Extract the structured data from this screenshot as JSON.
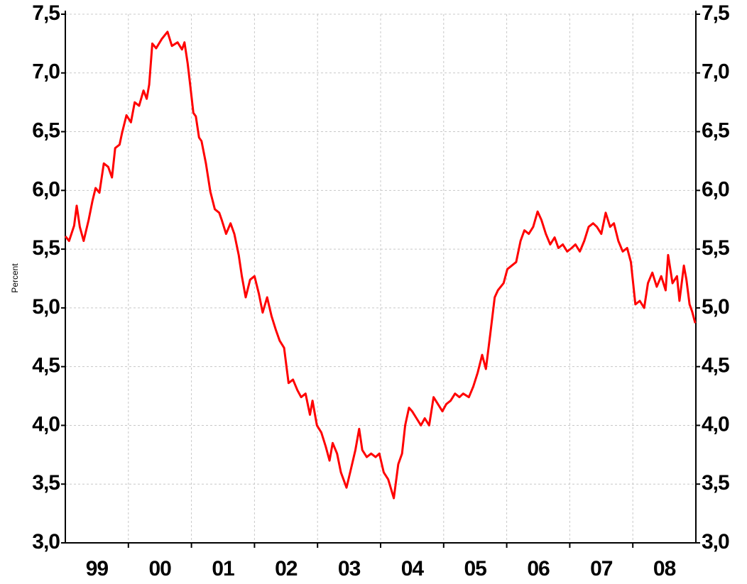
{
  "chart_data": {
    "type": "line",
    "y_label": "Percent",
    "x": [
      1999.0,
      1999.06,
      1999.14,
      1999.18,
      1999.23,
      1999.29,
      1999.37,
      1999.43,
      1999.48,
      1999.54,
      1999.61,
      1999.68,
      1999.74,
      1999.79,
      1999.86,
      1999.9,
      1999.97,
      2000.04,
      2000.1,
      2000.17,
      2000.24,
      2000.29,
      2000.33,
      2000.38,
      2000.44,
      2000.53,
      2000.62,
      2000.69,
      2000.78,
      2000.85,
      2000.89,
      2000.94,
      2000.98,
      2001.03,
      2001.07,
      2001.12,
      2001.16,
      2001.23,
      2001.3,
      2001.37,
      2001.44,
      2001.48,
      2001.55,
      2001.62,
      2001.68,
      2001.75,
      2001.8,
      2001.86,
      2001.93,
      2002.0,
      2002.07,
      2002.13,
      2002.2,
      2002.27,
      2002.34,
      2002.4,
      2002.47,
      2002.54,
      2002.61,
      2002.68,
      2002.74,
      2002.81,
      2002.88,
      2002.92,
      2002.99,
      2003.06,
      2003.13,
      2003.19,
      2003.24,
      2003.31,
      2003.37,
      2003.46,
      2003.53,
      2003.6,
      2003.66,
      2003.71,
      2003.78,
      2003.85,
      2003.92,
      2003.98,
      2004.05,
      2004.12,
      2004.21,
      2004.28,
      2004.34,
      2004.39,
      2004.45,
      2004.5,
      2004.57,
      2004.64,
      2004.7,
      2004.77,
      2004.84,
      2004.91,
      2004.98,
      2005.04,
      2005.11,
      2005.18,
      2005.25,
      2005.31,
      2005.4,
      2005.47,
      2005.54,
      2005.61,
      2005.67,
      2005.74,
      2005.81,
      2005.86,
      2005.95,
      2006.01,
      2006.08,
      2006.15,
      2006.22,
      2006.28,
      2006.35,
      2006.42,
      2006.49,
      2006.55,
      2006.62,
      2006.69,
      2006.76,
      2006.82,
      2006.89,
      2006.96,
      2007.03,
      2007.09,
      2007.16,
      2007.23,
      2007.3,
      2007.37,
      2007.43,
      2007.5,
      2007.57,
      2007.64,
      2007.7,
      2007.77,
      2007.84,
      2007.91,
      2007.97,
      2008.04,
      2008.11,
      2008.18,
      2008.24,
      2008.31,
      2008.38,
      2008.45,
      2008.52,
      2008.56,
      2008.63,
      2008.7,
      2008.74,
      2008.81,
      2008.85,
      2008.9,
      2008.94,
      2008.99
    ],
    "series": [
      {
        "color": "#ff0000",
        "values": [
          5.61,
          5.57,
          5.7,
          5.87,
          5.69,
          5.57,
          5.75,
          5.91,
          6.02,
          5.98,
          6.23,
          6.2,
          6.11,
          6.36,
          6.39,
          6.49,
          6.64,
          6.58,
          6.75,
          6.72,
          6.85,
          6.78,
          6.9,
          7.25,
          7.21,
          7.29,
          7.35,
          7.23,
          7.26,
          7.2,
          7.26,
          7.08,
          6.9,
          6.66,
          6.63,
          6.45,
          6.42,
          6.23,
          5.99,
          5.84,
          5.81,
          5.75,
          5.63,
          5.72,
          5.63,
          5.45,
          5.27,
          5.09,
          5.24,
          5.27,
          5.12,
          4.96,
          5.09,
          4.93,
          4.81,
          4.72,
          4.66,
          4.36,
          4.39,
          4.3,
          4.24,
          4.27,
          4.09,
          4.21,
          4.0,
          3.94,
          3.82,
          3.7,
          3.85,
          3.76,
          3.6,
          3.47,
          3.63,
          3.79,
          3.97,
          3.79,
          3.73,
          3.76,
          3.73,
          3.76,
          3.6,
          3.54,
          3.38,
          3.67,
          3.76,
          4.0,
          4.15,
          4.12,
          4.06,
          4.0,
          4.06,
          4.0,
          4.24,
          4.18,
          4.12,
          4.18,
          4.21,
          4.27,
          4.24,
          4.27,
          4.24,
          4.33,
          4.45,
          4.6,
          4.48,
          4.78,
          5.09,
          5.15,
          5.21,
          5.33,
          5.36,
          5.39,
          5.57,
          5.66,
          5.63,
          5.69,
          5.82,
          5.75,
          5.63,
          5.54,
          5.6,
          5.51,
          5.54,
          5.48,
          5.51,
          5.54,
          5.48,
          5.57,
          5.69,
          5.72,
          5.69,
          5.63,
          5.81,
          5.69,
          5.72,
          5.57,
          5.48,
          5.51,
          5.39,
          5.03,
          5.06,
          5.0,
          5.21,
          5.3,
          5.18,
          5.27,
          5.15,
          5.45,
          5.21,
          5.27,
          5.06,
          5.36,
          5.24,
          5.03,
          4.97,
          4.87
        ]
      }
    ],
    "xlim": [
      1999,
      2009
    ],
    "xticks": [
      {
        "value": 1999.5,
        "label": "99"
      },
      {
        "value": 2000.5,
        "label": "00"
      },
      {
        "value": 2001.5,
        "label": "01"
      },
      {
        "value": 2002.5,
        "label": "02"
      },
      {
        "value": 2003.5,
        "label": "03"
      },
      {
        "value": 2004.5,
        "label": "04"
      },
      {
        "value": 2005.5,
        "label": "05"
      },
      {
        "value": 2006.5,
        "label": "06"
      },
      {
        "value": 2007.5,
        "label": "07"
      },
      {
        "value": 2008.5,
        "label": "08"
      }
    ],
    "xgrid": [
      2000,
      2001,
      2002,
      2003,
      2004,
      2005,
      2006,
      2007,
      2008
    ],
    "ylim": [
      3.0,
      7.5
    ],
    "yticks": [
      {
        "value": 3.0,
        "label": "3,0"
      },
      {
        "value": 3.5,
        "label": "3,5"
      },
      {
        "value": 4.0,
        "label": "4,0"
      },
      {
        "value": 4.5,
        "label": "4,5"
      },
      {
        "value": 5.0,
        "label": "5,0"
      },
      {
        "value": 5.5,
        "label": "5,5"
      },
      {
        "value": 6.0,
        "label": "6,0"
      },
      {
        "value": 6.5,
        "label": "6,5"
      },
      {
        "value": 7.0,
        "label": "7,0"
      },
      {
        "value": 7.5,
        "label": "7,5"
      }
    ],
    "grid": true
  }
}
